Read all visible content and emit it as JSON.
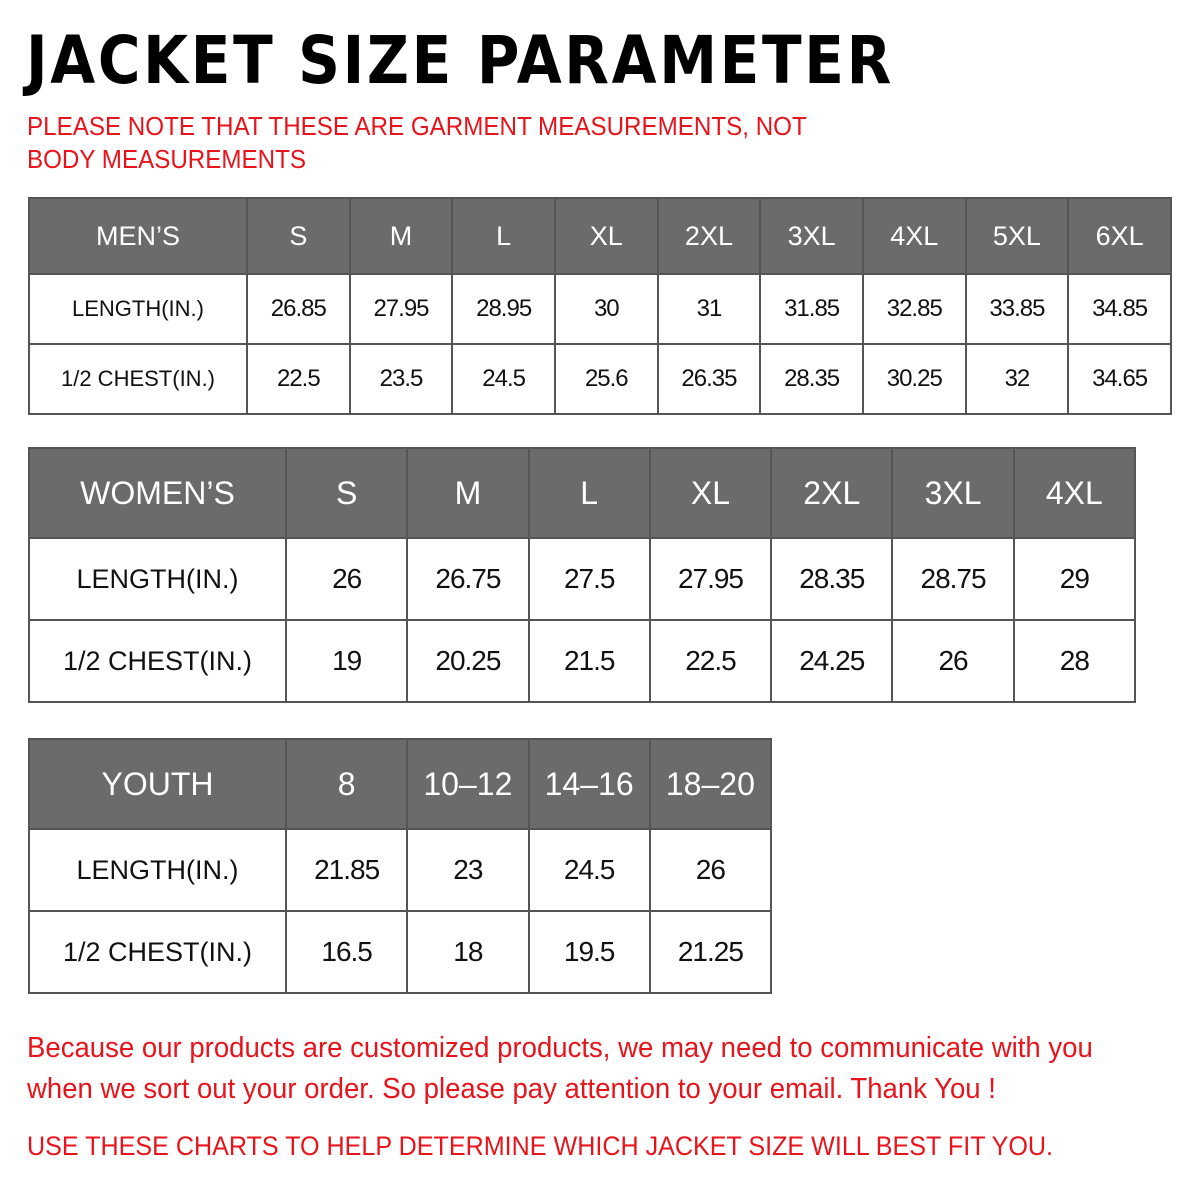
{
  "title": "JACKET SIZE PARAMETER",
  "note": "PLEASE NOTE THAT THESE ARE GARMENT MEASUREMENTS, NOT BODY MEASUREMENTS",
  "accent_color": "#e8141b",
  "header_color": "#6b6b6b",
  "men": {
    "label": "MEN’S",
    "sizes": [
      "S",
      "M",
      "L",
      "XL",
      "2XL",
      "3XL",
      "4XL",
      "5XL",
      "6XL"
    ],
    "rows": [
      {
        "label": "LENGTH(IN.)",
        "values": [
          "26.85",
          "27.95",
          "28.95",
          "30",
          "31",
          "31.85",
          "32.85",
          "33.85",
          "34.85"
        ]
      },
      {
        "label": "1/2 CHEST(IN.)",
        "values": [
          "22.5",
          "23.5",
          "24.5",
          "25.6",
          "26.35",
          "28.35",
          "30.25",
          "32",
          "34.65"
        ]
      }
    ]
  },
  "women": {
    "label": "WOMEN’S",
    "sizes": [
      "S",
      "M",
      "L",
      "XL",
      "2XL",
      "3XL",
      "4XL"
    ],
    "rows": [
      {
        "label": "LENGTH(IN.)",
        "values": [
          "26",
          "26.75",
          "27.5",
          "27.95",
          "28.35",
          "28.75",
          "29"
        ]
      },
      {
        "label": "1/2 CHEST(IN.)",
        "values": [
          "19",
          "20.25",
          "21.5",
          "22.5",
          "24.25",
          "26",
          "28"
        ]
      }
    ]
  },
  "youth": {
    "label": "YOUTH",
    "sizes": [
      "8",
      "10–12",
      "14–16",
      "18–20"
    ],
    "rows": [
      {
        "label": "LENGTH(IN.)",
        "values": [
          "21.85",
          "23",
          "24.5",
          "26"
        ]
      },
      {
        "label": "1/2 CHEST(IN.)",
        "values": [
          "16.5",
          "18",
          "19.5",
          "21.25"
        ]
      }
    ]
  },
  "footer": "Because our products are customized products, we may need to communicate with you when we sort out your order. So please pay attention to your email. Thank You !",
  "footer2": "USE THESE CHARTS TO HELP DETERMINE WHICH JACKET SIZE WILL BEST FIT YOU."
}
